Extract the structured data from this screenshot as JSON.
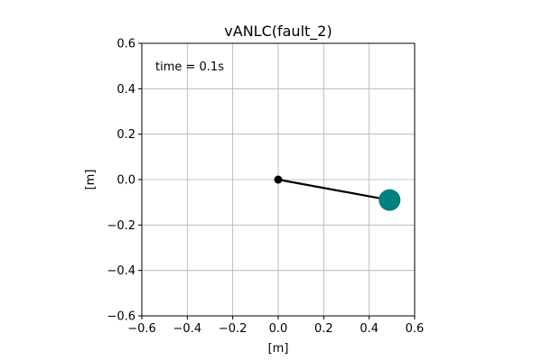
{
  "chart_data": {
    "type": "scatter",
    "title": "vANLC(fault_2)",
    "xlabel": "[m]",
    "ylabel": "[m]",
    "xlim": [
      -0.6,
      0.6
    ],
    "ylim": [
      -0.6,
      0.6
    ],
    "xticks": [
      -0.6,
      -0.4,
      -0.2,
      0.0,
      0.2,
      0.4,
      0.6
    ],
    "yticks": [
      -0.6,
      -0.4,
      -0.2,
      0.0,
      0.2,
      0.4,
      0.6
    ],
    "xtick_labels": [
      "−0.6",
      "−0.4",
      "−0.2",
      "0.0",
      "0.2",
      "0.4",
      "0.6"
    ],
    "ytick_labels": [
      "−0.6",
      "−0.4",
      "−0.2",
      "0.0",
      "0.2",
      "0.4",
      "0.6"
    ],
    "grid": true,
    "annotation": "time = 0.1s",
    "pivot": {
      "x": 0.0,
      "y": 0.0,
      "color": "#000000"
    },
    "bob": {
      "x": 0.49,
      "y": -0.09,
      "color": "#008080"
    },
    "rod_color": "#000000"
  }
}
